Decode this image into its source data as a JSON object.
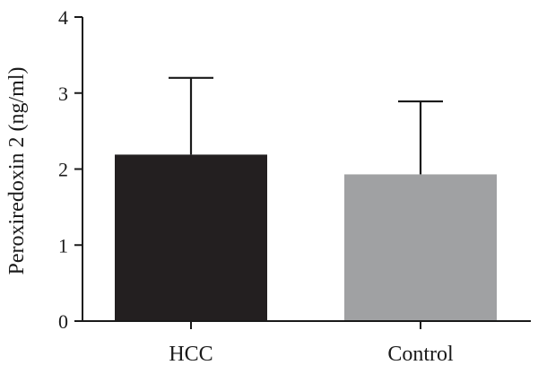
{
  "chart_data": {
    "type": "bar",
    "categories": [
      "HCC",
      "Control"
    ],
    "values": [
      2.19,
      1.93
    ],
    "error_upper": [
      3.2,
      2.89
    ],
    "colors": [
      "#231f20",
      "#a0a1a3"
    ],
    "ylabel": "Peroxiredoxin 2 (ng/ml)",
    "xlabel": "",
    "ylim": [
      0,
      4
    ],
    "yticks": [
      0,
      1,
      2,
      3,
      4
    ],
    "grid": false
  }
}
